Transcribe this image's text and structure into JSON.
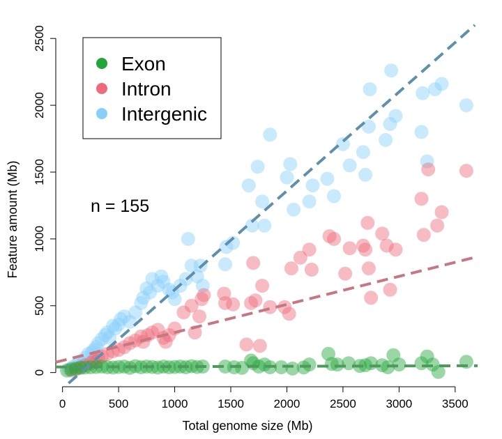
{
  "chart_data": {
    "type": "scatter",
    "title": "",
    "xlabel": "Total genome size (Mb)",
    "ylabel": "Feature amount (Mb)",
    "xlim": [
      -60,
      3700
    ],
    "ylim": [
      -80,
      2600
    ],
    "xticks": [
      0,
      500,
      1000,
      1500,
      2000,
      2500,
      3000,
      3500
    ],
    "yticks": [
      0,
      500,
      1000,
      1500,
      2000,
      2500
    ],
    "annotation": "n = 155",
    "legend": {
      "placement": "top-left"
    },
    "series": [
      {
        "name": "Intergenic",
        "color": "#87CEFA",
        "trend_line": {
          "slope": 0.74,
          "intercept": -120,
          "color": "#5F8FAA"
        },
        "points": [
          [
            60,
            25
          ],
          [
            90,
            40
          ],
          [
            120,
            55
          ],
          [
            150,
            80
          ],
          [
            180,
            70
          ],
          [
            200,
            110
          ],
          [
            230,
            140
          ],
          [
            260,
            150
          ],
          [
            280,
            170
          ],
          [
            300,
            190
          ],
          [
            320,
            220
          ],
          [
            350,
            250
          ],
          [
            380,
            280
          ],
          [
            400,
            300
          ],
          [
            420,
            260
          ],
          [
            450,
            350
          ],
          [
            470,
            330
          ],
          [
            500,
            360
          ],
          [
            520,
            400
          ],
          [
            550,
            420
          ],
          [
            600,
            380
          ],
          [
            650,
            450
          ],
          [
            700,
            520
          ],
          [
            720,
            560
          ],
          [
            750,
            630
          ],
          [
            780,
            600
          ],
          [
            800,
            700
          ],
          [
            850,
            650
          ],
          [
            880,
            720
          ],
          [
            900,
            680
          ],
          [
            950,
            620
          ],
          [
            980,
            600
          ],
          [
            1000,
            550
          ],
          [
            1050,
            650
          ],
          [
            1100,
            700
          ],
          [
            1120,
            1000
          ],
          [
            1150,
            800
          ],
          [
            1200,
            720
          ],
          [
            1230,
            800
          ],
          [
            1250,
            650
          ],
          [
            1450,
            810
          ],
          [
            1460,
            940
          ],
          [
            1520,
            970
          ],
          [
            1660,
            1400
          ],
          [
            1690,
            1100
          ],
          [
            1740,
            1540
          ],
          [
            1780,
            1280
          ],
          [
            1800,
            1100
          ],
          [
            1850,
            1780
          ],
          [
            2000,
            1460
          ],
          [
            2030,
            1560
          ],
          [
            2060,
            1220
          ],
          [
            2200,
            1280
          ],
          [
            2230,
            1400
          ],
          [
            2360,
            1450
          ],
          [
            2420,
            1320
          ],
          [
            2500,
            1710
          ],
          [
            2560,
            1550
          ],
          [
            2680,
            1650
          ],
          [
            2700,
            1480
          ],
          [
            2730,
            1840
          ],
          [
            2740,
            2120
          ],
          [
            2880,
            1740
          ],
          [
            2920,
            1860
          ],
          [
            2930,
            2260
          ],
          [
            2970,
            1920
          ],
          [
            3200,
            1800
          ],
          [
            3210,
            2090
          ],
          [
            3250,
            1580
          ],
          [
            3320,
            2120
          ],
          [
            3380,
            2160
          ],
          [
            3600,
            2000
          ]
        ]
      },
      {
        "name": "Intron",
        "color": "#EE6B7B",
        "trend_line": {
          "slope": 0.21,
          "intercept": 90,
          "color": "#C57882"
        },
        "points": [
          [
            80,
            15
          ],
          [
            120,
            25
          ],
          [
            160,
            40
          ],
          [
            200,
            55
          ],
          [
            250,
            70
          ],
          [
            280,
            90
          ],
          [
            300,
            80
          ],
          [
            320,
            110
          ],
          [
            350,
            120
          ],
          [
            400,
            140
          ],
          [
            450,
            160
          ],
          [
            500,
            170
          ],
          [
            550,
            190
          ],
          [
            600,
            220
          ],
          [
            650,
            240
          ],
          [
            700,
            270
          ],
          [
            720,
            230
          ],
          [
            760,
            280
          ],
          [
            800,
            300
          ],
          [
            850,
            320
          ],
          [
            900,
            260
          ],
          [
            920,
            230
          ],
          [
            950,
            280
          ],
          [
            1000,
            330
          ],
          [
            1080,
            450
          ],
          [
            1150,
            500
          ],
          [
            1180,
            300
          ],
          [
            1220,
            420
          ],
          [
            1240,
            550
          ],
          [
            1260,
            580
          ],
          [
            1440,
            590
          ],
          [
            1450,
            520
          ],
          [
            1520,
            510
          ],
          [
            1640,
            210
          ],
          [
            1680,
            520
          ],
          [
            1700,
            820
          ],
          [
            1720,
            540
          ],
          [
            1760,
            200
          ],
          [
            1780,
            650
          ],
          [
            1850,
            490
          ],
          [
            1980,
            490
          ],
          [
            2020,
            440
          ],
          [
            2040,
            780
          ],
          [
            2120,
            860
          ],
          [
            2200,
            920
          ],
          [
            2220,
            770
          ],
          [
            2380,
            1020
          ],
          [
            2420,
            1000
          ],
          [
            2520,
            740
          ],
          [
            2560,
            930
          ],
          [
            2680,
            950
          ],
          [
            2700,
            920
          ],
          [
            2720,
            1120
          ],
          [
            2730,
            780
          ],
          [
            2750,
            560
          ],
          [
            2850,
            1040
          ],
          [
            2890,
            950
          ],
          [
            2920,
            620
          ],
          [
            2970,
            920
          ],
          [
            3200,
            1300
          ],
          [
            3220,
            1030
          ],
          [
            3260,
            1520
          ],
          [
            3340,
            1100
          ],
          [
            3380,
            1200
          ],
          [
            3600,
            1510
          ]
        ]
      },
      {
        "name": "Exon",
        "color": "#22A63A",
        "trend_line": {
          "slope": 0.0025,
          "intercept": 42,
          "color": "#4E9A5C"
        },
        "points": [
          [
            40,
            15
          ],
          [
            80,
            25
          ],
          [
            120,
            30
          ],
          [
            160,
            35
          ],
          [
            200,
            38
          ],
          [
            250,
            40
          ],
          [
            300,
            42
          ],
          [
            350,
            45
          ],
          [
            400,
            40
          ],
          [
            450,
            38
          ],
          [
            500,
            42
          ],
          [
            550,
            45
          ],
          [
            600,
            35
          ],
          [
            650,
            48
          ],
          [
            700,
            40
          ],
          [
            750,
            45
          ],
          [
            800,
            42
          ],
          [
            850,
            38
          ],
          [
            900,
            45
          ],
          [
            950,
            40
          ],
          [
            1000,
            42
          ],
          [
            1050,
            45
          ],
          [
            1100,
            40
          ],
          [
            1150,
            48
          ],
          [
            1200,
            42
          ],
          [
            1250,
            45
          ],
          [
            1450,
            45
          ],
          [
            1530,
            40
          ],
          [
            1600,
            35
          ],
          [
            1680,
            90
          ],
          [
            1700,
            70
          ],
          [
            1750,
            45
          ],
          [
            1800,
            60
          ],
          [
            1850,
            40
          ],
          [
            1950,
            40
          ],
          [
            2050,
            30
          ],
          [
            2150,
            38
          ],
          [
            2200,
            60
          ],
          [
            2370,
            140
          ],
          [
            2400,
            65
          ],
          [
            2450,
            60
          ],
          [
            2550,
            70
          ],
          [
            2650,
            50
          ],
          [
            2700,
            55
          ],
          [
            2750,
            70
          ],
          [
            2850,
            55
          ],
          [
            2900,
            40
          ],
          [
            2950,
            130
          ],
          [
            3000,
            60
          ],
          [
            3200,
            70
          ],
          [
            3250,
            120
          ],
          [
            3300,
            60
          ],
          [
            3350,
            5
          ],
          [
            3600,
            80
          ]
        ]
      }
    ]
  }
}
